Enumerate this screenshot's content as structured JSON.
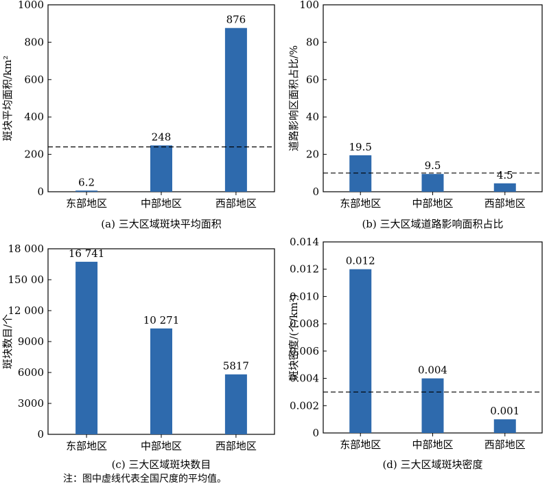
{
  "colors": {
    "bar": "#2e6aad",
    "axis": "#000000",
    "mean_line": "#000000"
  },
  "chart_data": [
    {
      "type": "bar",
      "caption": "(a) 三大区域斑块平均面积",
      "ylabel": "斑块平均面积/km²",
      "categories": [
        "东部地区",
        "中部地区",
        "西部地区"
      ],
      "values": [
        6.2,
        248,
        876
      ],
      "value_labels": [
        "6.2",
        "248",
        "876"
      ],
      "ylim": [
        0,
        1000
      ],
      "yticks": [
        0,
        200,
        400,
        600,
        800,
        1000
      ],
      "ytick_labels": [
        "0",
        "200",
        "400",
        "600",
        "800",
        "1000"
      ],
      "mean_line": 240
    },
    {
      "type": "bar",
      "caption": "(b) 三大区域道路影响面积占比",
      "ylabel": "道路影响区面积占比/%",
      "categories": [
        "东部地区",
        "中部地区",
        "西部地区"
      ],
      "values": [
        19.5,
        9.5,
        4.5
      ],
      "value_labels": [
        "19.5",
        "9.5",
        "4.5"
      ],
      "ylim": [
        0,
        100
      ],
      "yticks": [
        0,
        20,
        40,
        60,
        80,
        100
      ],
      "ytick_labels": [
        "0",
        "20",
        "40",
        "60",
        "80",
        "100"
      ],
      "mean_line": 10
    },
    {
      "type": "bar",
      "caption": "(c) 三大区域斑块数目",
      "ylabel": "斑块数目/个",
      "categories": [
        "东部地区",
        "中部地区",
        "西部地区"
      ],
      "values": [
        16741,
        10271,
        5817
      ],
      "value_labels": [
        "16 741",
        "10 271",
        "5817"
      ],
      "ylim": [
        0,
        18000
      ],
      "yticks": [
        0,
        3000,
        6000,
        9000,
        12000,
        15000,
        18000
      ],
      "ytick_labels": [
        "0",
        "3000",
        "6000",
        "9000",
        "12 000",
        "150 00",
        "18 000"
      ]
    },
    {
      "type": "bar",
      "caption": "(d) 三大区域斑块密度",
      "ylabel": "斑块密度/(个/km²)",
      "categories": [
        "东部地区",
        "中部地区",
        "西部地区"
      ],
      "values": [
        0.012,
        0.004,
        0.001
      ],
      "value_labels": [
        "0.012",
        "0.004",
        "0.001"
      ],
      "ylim": [
        0,
        0.014
      ],
      "yticks": [
        0,
        0.002,
        0.004,
        0.006,
        0.008,
        0.01,
        0.012,
        0.014
      ],
      "ytick_labels": [
        "0",
        "0.002",
        "0.004",
        "0.006",
        "0.008",
        "0.010",
        "0.012",
        "0.014"
      ],
      "mean_line": 0.003
    }
  ],
  "note": "注：图中虚线代表全国尺度的平均值。"
}
